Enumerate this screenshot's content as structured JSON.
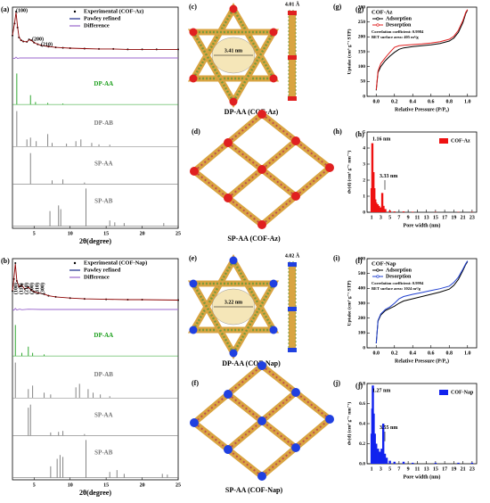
{
  "chart_data": [
    {
      "type": "line",
      "stacked": true,
      "label": "(a)",
      "xlabel": "2θ(degree)",
      "xlim": [
        2,
        25
      ],
      "xticks": [
        5,
        10,
        15,
        20,
        25
      ],
      "annotations": [
        "(100)",
        "(200)",
        "(210)"
      ],
      "series": [
        {
          "name": "Experimental (COF-Az)",
          "color": "#000000",
          "style": "scatter",
          "x": [
            2.0,
            2.3,
            2.5,
            2.7,
            2.9,
            3.2,
            3.5,
            4.0,
            4.3,
            4.6,
            5.0,
            5.5,
            6,
            7,
            8,
            9,
            10,
            12,
            14,
            16,
            18,
            20,
            22,
            25
          ],
          "values": [
            40,
            70,
            100,
            60,
            35,
            28,
            25,
            24,
            30,
            28,
            22,
            18,
            15,
            12,
            10,
            9,
            8,
            7,
            6,
            6,
            5,
            5,
            5,
            5
          ]
        },
        {
          "name": "Pawley refined",
          "color": "#8b0000",
          "style": "line",
          "x": [
            2.0,
            2.3,
            2.5,
            2.7,
            2.9,
            3.2,
            3.5,
            4.0,
            4.3,
            4.6,
            5.0,
            5.5,
            6,
            7,
            8,
            9,
            10,
            12,
            14,
            16,
            18,
            20,
            22,
            25
          ],
          "values": [
            40,
            72,
            98,
            62,
            36,
            28,
            25,
            24,
            29,
            28,
            22,
            18,
            15,
            12,
            10,
            9,
            8,
            7,
            6,
            6,
            5,
            5,
            5,
            5
          ]
        },
        {
          "name": "Difference",
          "color": "#9966cc",
          "style": "line",
          "x": [
            2,
            2.3,
            2.5,
            2.7,
            3,
            5,
            10,
            15,
            20,
            25
          ],
          "values": [
            0,
            -4,
            6,
            -3,
            1,
            0,
            0,
            0,
            0,
            0
          ]
        },
        {
          "name": "DP-AA",
          "color": "#1a9e1a",
          "style": "stem",
          "x": [
            2.6,
            4.5,
            5.2,
            6.9,
            9.0
          ],
          "values": [
            100,
            30,
            8,
            5,
            3
          ]
        },
        {
          "name": "DP-AB",
          "color": "#777777",
          "style": "stem",
          "x": [
            2.6,
            4.0,
            4.5,
            5.3,
            6.9,
            7.5,
            9.5,
            10.8,
            11.5,
            13.0,
            14.0,
            15.5
          ],
          "values": [
            100,
            20,
            25,
            15,
            35,
            10,
            8,
            15,
            20,
            10,
            6,
            5
          ]
        },
        {
          "name": "SP-AA",
          "color": "#777777",
          "style": "stem",
          "x": [
            4.5,
            7.5,
            9.0,
            12.0
          ],
          "values": [
            100,
            12,
            15,
            5
          ]
        },
        {
          "name": "SP-AB",
          "color": "#777777",
          "style": "stem",
          "x": [
            7.2,
            8.4,
            8.7,
            12.2,
            15.5,
            16.2,
            17.5,
            23.0
          ],
          "values": [
            40,
            55,
            45,
            100,
            15,
            10,
            8,
            8
          ]
        }
      ]
    },
    {
      "type": "line",
      "label": "(g)",
      "xlabel": "Relative Pressure (P/P₀)",
      "ylabel": "Uptake (cm³ g⁻¹ STP)",
      "xlim": [
        -0.1,
        1.1
      ],
      "xticks": [
        {
          "value": 0,
          "label": "0.0"
        },
        0.2,
        0.4,
        0.6,
        0.8,
        {
          "value": 1,
          "label": "1.0"
        }
      ],
      "ylim": [
        0,
        300
      ],
      "yticks": [
        0,
        50,
        100,
        150,
        200,
        250,
        300
      ],
      "legend_title": "COF-Az",
      "notes": [
        "Correlation coefficient: 0.9984",
        "BET surface area: 405 m²/g"
      ],
      "series": [
        {
          "name": "Adsorption",
          "color": "#000000",
          "x": [
            0,
            0.02,
            0.05,
            0.1,
            0.15,
            0.2,
            0.25,
            0.3,
            0.4,
            0.5,
            0.6,
            0.7,
            0.8,
            0.85,
            0.9,
            0.95,
            0.98,
            1.0
          ],
          "values": [
            20,
            80,
            100,
            120,
            135,
            148,
            158,
            163,
            167,
            170,
            173,
            178,
            186,
            196,
            215,
            248,
            278,
            290
          ]
        },
        {
          "name": "Desorption",
          "color": "#e02020",
          "x": [
            0,
            0.02,
            0.05,
            0.1,
            0.15,
            0.2,
            0.25,
            0.3,
            0.4,
            0.5,
            0.6,
            0.7,
            0.8,
            0.85,
            0.9,
            0.95,
            0.98,
            1.0
          ],
          "values": [
            22,
            85,
            110,
            130,
            148,
            165,
            170,
            172,
            174,
            176,
            179,
            184,
            192,
            202,
            222,
            255,
            282,
            292
          ]
        }
      ]
    },
    {
      "type": "bar",
      "label": "(h)",
      "xlabel": "Pore width (nm)",
      "ylabel": "dv(d) (cm³ g⁻¹ nm⁻¹)",
      "xlim": [
        0,
        24
      ],
      "xticks": [
        1,
        3,
        5,
        7,
        9,
        11,
        13,
        15,
        17,
        19,
        21,
        23
      ],
      "ylim": [
        0,
        5
      ],
      "yticks": [
        0,
        1,
        2,
        3,
        4,
        5
      ],
      "annotations": [
        "1.16 nm",
        "3.33 nm"
      ],
      "series": [
        {
          "name": "COF-Az",
          "color": "#ee1111",
          "x": [
            1.0,
            1.16,
            1.4,
            1.6,
            1.8,
            2.0,
            2.3,
            2.6,
            3.0,
            3.33,
            3.6,
            4.0,
            5,
            6,
            8,
            10,
            15,
            20,
            23
          ],
          "values": [
            1.5,
            4.3,
            2.5,
            1.5,
            0.8,
            0.6,
            0.5,
            0.4,
            0.3,
            1.2,
            0.4,
            0.2,
            0.1,
            0.05,
            0.05,
            0.03,
            0.02,
            0.02,
            0.02
          ]
        }
      ]
    },
    {
      "type": "line",
      "stacked": true,
      "label": "(b)",
      "xlabel": "2θ(degree)",
      "xlim": [
        2,
        25
      ],
      "xticks": [
        5,
        10,
        15,
        20,
        25
      ],
      "annotations": [
        "(100)",
        "(110)",
        "(210)",
        "(200)",
        "(310)",
        "(300)"
      ],
      "series": [
        {
          "name": "Experimental (COF-Nap)",
          "color": "#000000",
          "style": "scatter",
          "x": [
            2.0,
            2.2,
            2.4,
            2.6,
            2.9,
            3.3,
            3.7,
            4.2,
            4.6,
            5.0,
            5.6,
            6.4,
            7,
            8,
            10,
            12,
            15,
            18,
            20,
            25
          ],
          "values": [
            30,
            60,
            100,
            55,
            40,
            45,
            35,
            40,
            32,
            28,
            25,
            22,
            18,
            15,
            12,
            10,
            9,
            8,
            8,
            7
          ]
        },
        {
          "name": "Pawley refined",
          "color": "#8b0000",
          "style": "line",
          "x": [
            2.0,
            2.2,
            2.4,
            2.6,
            2.9,
            3.3,
            3.7,
            4.2,
            4.6,
            5.0,
            5.6,
            6.4,
            7,
            8,
            10,
            12,
            15,
            18,
            20,
            25
          ],
          "values": [
            31,
            61,
            98,
            56,
            40,
            44,
            35,
            39,
            32,
            28,
            25,
            22,
            18,
            15,
            12,
            10,
            9,
            8,
            8,
            7
          ]
        },
        {
          "name": "Difference",
          "color": "#9966cc",
          "style": "line",
          "x": [
            2,
            2.2,
            2.4,
            2.6,
            3,
            3.3,
            4.2,
            6,
            10,
            15,
            20,
            25
          ],
          "values": [
            0,
            -5,
            8,
            -4,
            3,
            -2,
            2,
            0,
            0,
            0,
            0,
            0
          ]
        },
        {
          "name": "DP-AA",
          "color": "#1a9e1a",
          "style": "stem",
          "x": [
            2.4,
            3.3,
            4.2,
            4.8,
            6.4
          ],
          "values": [
            100,
            10,
            30,
            10,
            5
          ]
        },
        {
          "name": "DP-AB",
          "color": "#777777",
          "style": "stem",
          "x": [
            2.4,
            4.2,
            4.8,
            6.4,
            7.3,
            10.8,
            11.3,
            12.5,
            13.2,
            14.2,
            15.5
          ],
          "values": [
            100,
            25,
            35,
            15,
            10,
            30,
            40,
            25,
            15,
            10,
            5
          ]
        },
        {
          "name": "SP-AA",
          "color": "#777777",
          "style": "stem",
          "x": [
            4.2,
            4.5,
            7.3,
            8.4,
            9.0,
            12.0
          ],
          "values": [
            90,
            100,
            10,
            12,
            15,
            5
          ]
        },
        {
          "name": "SP-AB",
          "color": "#777777",
          "style": "stem",
          "x": [
            7.3,
            8.2,
            8.6,
            9.0,
            12.2,
            15.5,
            16.5,
            17.5,
            22.8,
            23.5
          ],
          "values": [
            30,
            50,
            60,
            55,
            100,
            15,
            20,
            10,
            10,
            8
          ]
        }
      ]
    },
    {
      "type": "line",
      "label": "(i)",
      "xlabel": "Relative Pressure (P/P₀)",
      "ylabel": "Uptake (cm³ g⁻¹ STP)",
      "xlim": [
        -0.1,
        1.1
      ],
      "xticks": [
        {
          "value": 0,
          "label": "0.0"
        },
        0.2,
        0.4,
        0.6,
        0.8,
        {
          "value": 1,
          "label": "1.0"
        }
      ],
      "ylim": [
        0,
        600
      ],
      "yticks": [
        0,
        100,
        200,
        300,
        400,
        500,
        600
      ],
      "legend_title": "COF-Nap",
      "notes": [
        "Correlation coefficient: 0.9994",
        "BET surface area: 1024 m²/g"
      ],
      "series": [
        {
          "name": "Adsorption",
          "color": "#000000",
          "x": [
            0,
            0.02,
            0.05,
            0.1,
            0.15,
            0.2,
            0.25,
            0.3,
            0.4,
            0.5,
            0.6,
            0.7,
            0.8,
            0.85,
            0.9,
            0.95,
            0.98,
            1.0
          ],
          "values": [
            30,
            180,
            220,
            250,
            265,
            280,
            300,
            315,
            330,
            345,
            360,
            375,
            395,
            420,
            460,
            520,
            560,
            580
          ]
        },
        {
          "name": "Desorption",
          "color": "#2040d0",
          "x": [
            0,
            0.02,
            0.05,
            0.1,
            0.15,
            0.2,
            0.25,
            0.3,
            0.4,
            0.5,
            0.6,
            0.7,
            0.8,
            0.85,
            0.9,
            0.95,
            0.98,
            1.0
          ],
          "values": [
            30,
            185,
            228,
            258,
            275,
            300,
            330,
            345,
            360,
            372,
            385,
            398,
            415,
            440,
            475,
            530,
            565,
            585
          ]
        }
      ]
    },
    {
      "type": "bar",
      "label": "(j)",
      "xlabel": "Pore width (nm)",
      "ylabel": "dv(d) (cm³ g⁻¹ nm⁻¹)",
      "xlim": [
        0,
        24
      ],
      "xticks": [
        1,
        3,
        5,
        7,
        9,
        11,
        13,
        15,
        17,
        19,
        21,
        23
      ],
      "ylim": [
        0,
        0.8
      ],
      "yticks": [
        {
          "value": 0,
          "label": "0.0"
        },
        0.2,
        0.4,
        0.6,
        0.8
      ],
      "annotations": [
        "1.27 nm",
        "3.55 nm"
      ],
      "series": [
        {
          "name": "COF-Nap",
          "color": "#1122ee",
          "x": [
            1.0,
            1.15,
            1.27,
            1.45,
            1.7,
            2.0,
            2.4,
            2.8,
            3.2,
            3.55,
            3.9,
            4.3,
            5,
            6,
            8,
            10,
            15,
            20,
            23
          ],
          "values": [
            0.3,
            0.55,
            0.78,
            0.5,
            0.3,
            0.2,
            0.15,
            0.12,
            0.15,
            0.4,
            0.1,
            0.06,
            0.03,
            0.02,
            0.02,
            0.01,
            0.01,
            0.01,
            0.01
          ]
        }
      ]
    }
  ],
  "structures": [
    {
      "label": "(c)",
      "caption": "DP-AA (COF-Az)",
      "dimensions": [
        "3.41 nm",
        "4.01 Å"
      ]
    },
    {
      "label": "(d)",
      "caption": "SP-AA (COF-Az)"
    },
    {
      "label": "(e)",
      "caption": "DP-AA (COF-Nap)",
      "dimensions": [
        "3.22 nm",
        "4.02 Å"
      ]
    },
    {
      "label": "(f)",
      "caption": "SP-AA (COF-Nap)"
    }
  ]
}
